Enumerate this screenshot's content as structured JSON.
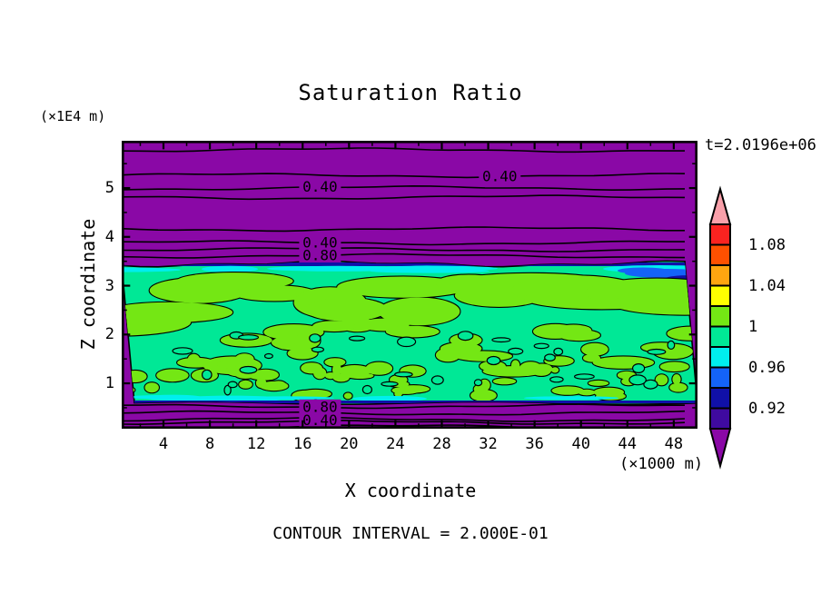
{
  "page": {
    "title": "Saturation Ratio",
    "time_label": "t=2.0196e+06",
    "y_unit_label": "(×1E4 m)",
    "x_unit_label": "(×1000 m)",
    "y_axis_label": "Z coordinate",
    "x_axis_label": "X coordinate",
    "contour_note": "CONTOUR INTERVAL = 2.000E-01"
  },
  "chart_data": {
    "type": "heatmap",
    "subtype": "filled-contour-plot",
    "title": "Saturation Ratio",
    "time_annotation": "t=2.0196e+06",
    "contour_interval": "2.000E-01",
    "xlabel": "X coordinate",
    "x_units": "×1000 m",
    "ylabel": "Z coordinate",
    "y_units": "×1E4 m",
    "xlim": [
      0.4,
      50
    ],
    "ylim": [
      0,
      5.97
    ],
    "x_major_ticks": [
      4,
      8,
      12,
      16,
      20,
      24,
      28,
      32,
      36,
      40,
      44,
      48
    ],
    "x_minor_step": 2,
    "y_major_ticks": [
      1,
      2,
      3,
      4,
      5
    ],
    "y_minor_step": 0.5,
    "colorbar": {
      "orientation": "vertical",
      "value_step_per_segment": 0.02,
      "segments_top_to_bottom": [
        {
          "color": "#FA2320",
          "label_at_bottom": "1.08"
        },
        {
          "color": "#FF5000",
          "label_at_bottom": ""
        },
        {
          "color": "#FFA510",
          "label_at_bottom": "1.04"
        },
        {
          "color": "#FFFF00",
          "label_at_bottom": ""
        },
        {
          "color": "#74E714",
          "label_at_bottom": "1"
        },
        {
          "color": "#00E896",
          "label_at_bottom": ""
        },
        {
          "color": "#00EEEE",
          "label_at_bottom": "0.96"
        },
        {
          "color": "#1463F8",
          "label_at_bottom": ""
        },
        {
          "color": "#1010A8",
          "label_at_bottom": "0.92"
        },
        {
          "color": "#3F0AA0",
          "label_at_bottom": ""
        }
      ],
      "over_arrow_color": "#F9A0AA",
      "under_arrow_color": "#8A08A6"
    },
    "regions": [
      {
        "name": "upper-subsaturated-layer",
        "z_from": 3.45,
        "z_to": 5.97,
        "color": "#8A08A6"
      },
      {
        "name": "cloud-band",
        "z_from": 0.6,
        "z_to": 3.45,
        "base_color": "#00E896",
        "blob_color": "#74E714",
        "edge_colors": [
          "#00EEEE",
          "#1463F8",
          "#1010A8"
        ]
      },
      {
        "name": "lower-subsaturated-layer",
        "z_from": 0,
        "z_to": 0.6,
        "color": "#8A08A6"
      }
    ],
    "upper_contours": [
      {
        "z": 5.78
      },
      {
        "z": 5.26,
        "label": "0.40",
        "label_x": 33
      },
      {
        "z": 5.0,
        "label": "0.40",
        "label_x": 17.5
      },
      {
        "z": 4.81
      },
      {
        "z": 4.16
      },
      {
        "z": 3.88,
        "label": "0.40",
        "label_x": 17.5
      },
      {
        "z": 3.74
      },
      {
        "z": 3.61,
        "label": "0.80",
        "label_x": 17.5
      }
    ],
    "lower_contours": [
      {
        "z": 0.53,
        "label": "0.80",
        "label_x": 17.5
      },
      {
        "z": 0.39
      },
      {
        "z": 0.26
      },
      {
        "z": 0.2,
        "label": "0.40",
        "label_x": 17.5
      },
      {
        "z": 0.11
      }
    ]
  },
  "colors": {
    "background": "#FFFFFF",
    "purple": "#8A08A6",
    "band_teal": "#00E896",
    "blob_green": "#74E714",
    "cyan": "#00EEEE",
    "blue": "#1463F8",
    "navy": "#1010A8",
    "line": "#000000"
  }
}
